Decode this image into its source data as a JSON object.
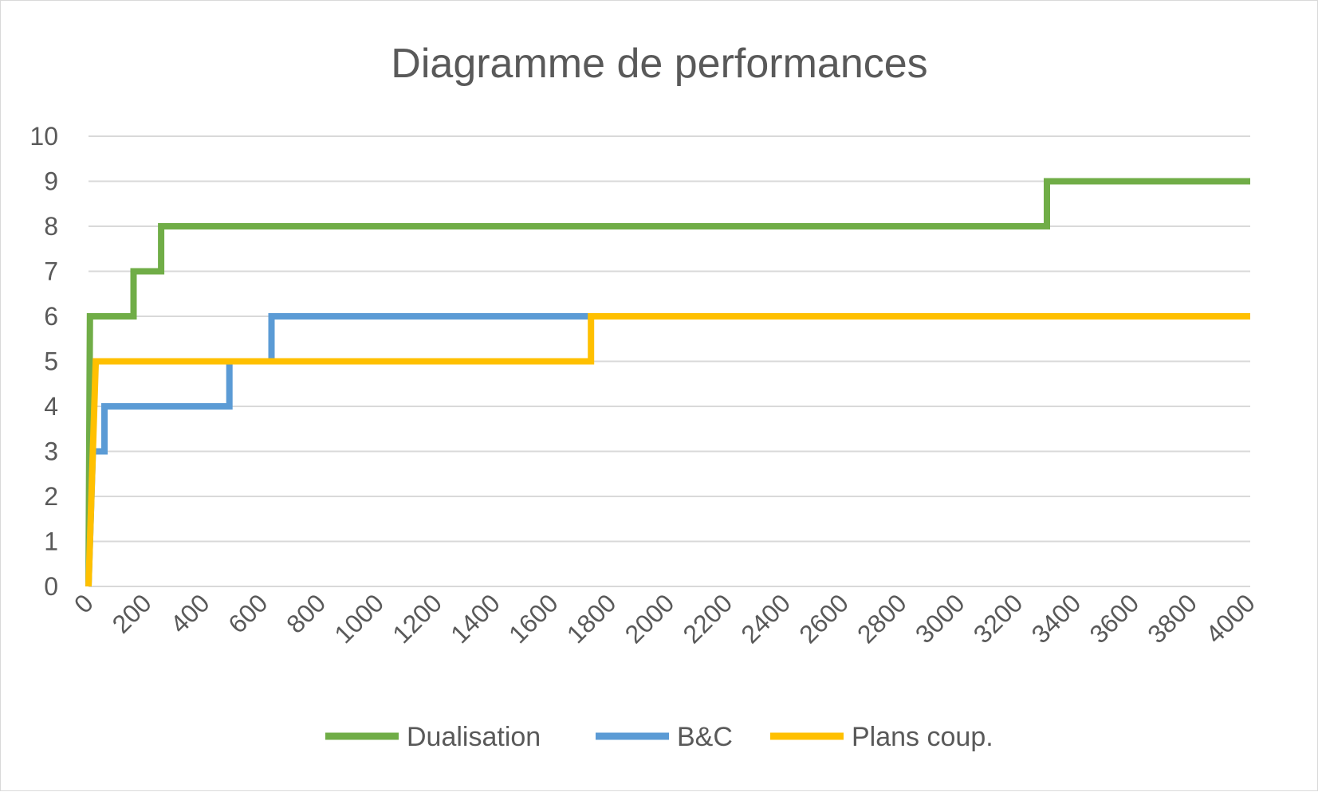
{
  "chart_data": {
    "type": "line",
    "title": "Diagramme de performances",
    "xlabel": "",
    "ylabel": "",
    "xlim": [
      0,
      4000
    ],
    "ylim": [
      0,
      10
    ],
    "x_ticks": [
      "0",
      "200",
      "400",
      "600",
      "800",
      "1000",
      "1200",
      "1400",
      "1600",
      "1800",
      "2000",
      "2200",
      "2400",
      "2600",
      "2800",
      "3000",
      "3200",
      "3400",
      "3600",
      "3800",
      "4000"
    ],
    "y_ticks": [
      "0",
      "1",
      "2",
      "3",
      "4",
      "5",
      "6",
      "7",
      "8",
      "9",
      "10"
    ],
    "grid": true,
    "legend_position": "bottom",
    "step": true,
    "series": [
      {
        "name": "Dualisation",
        "color": "#70ad47",
        "points": [
          [
            0,
            0
          ],
          [
            5,
            6
          ],
          [
            155,
            6
          ],
          [
            155,
            7
          ],
          [
            250,
            7
          ],
          [
            250,
            8
          ],
          [
            3300,
            8
          ],
          [
            3300,
            9
          ],
          [
            4000,
            9
          ]
        ]
      },
      {
        "name": "B&C",
        "color": "#5b9bd5",
        "points": [
          [
            0,
            0
          ],
          [
            15,
            3
          ],
          [
            55,
            3
          ],
          [
            55,
            4
          ],
          [
            485,
            4
          ],
          [
            485,
            5
          ],
          [
            630,
            5
          ],
          [
            630,
            6
          ],
          [
            1730,
            6
          ]
        ]
      },
      {
        "name": "Plans coup.",
        "color": "#ffc000",
        "points": [
          [
            0,
            0
          ],
          [
            25,
            5
          ],
          [
            1730,
            5
          ],
          [
            1730,
            6
          ],
          [
            4000,
            6
          ]
        ]
      }
    ]
  }
}
